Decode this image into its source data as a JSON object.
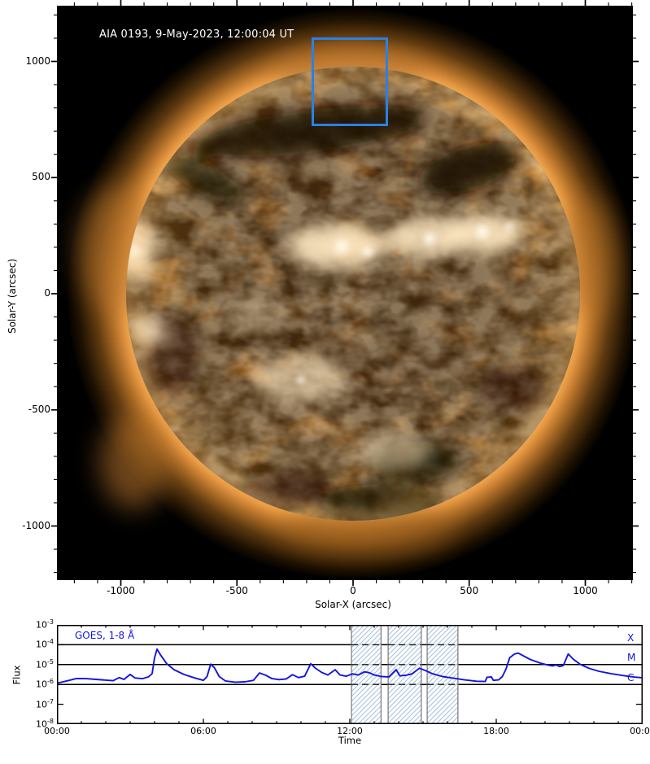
{
  "solar_plot": {
    "title": "AIA 0193, 9-May-2023, 12:00:04 UT",
    "xlabel": "Solar-X (arcsec)",
    "ylabel": "Solar-Y (arcsec)",
    "fov_box_color": "#2b80e6",
    "title_color": "#ffffff"
  },
  "goes_plot": {
    "legend": "GOES, 1-8 Å",
    "xlabel": "Time",
    "ylabel": "Flux",
    "class_labels": {
      "x": "X",
      "m": "M",
      "c": "C"
    },
    "line_color": "#1414dd",
    "hatch_color": "#a9c2de",
    "band_edge_color": "#777777"
  },
  "chart_data": [
    {
      "type": "heatmap",
      "description": "SDO/AIA 193 A full-disk EUV image of the Sun with FOV annotation box",
      "title": "AIA 0193, 9-May-2023, 12:00:04 UT",
      "xlabel": "Solar-X (arcsec)",
      "ylabel": "Solar-Y (arcsec)",
      "xlim": [
        -1240,
        1240
      ],
      "ylim": [
        -1240,
        1240
      ],
      "xticks_major": [
        -1000,
        -500,
        0,
        500,
        1000
      ],
      "yticks_major": [
        -1000,
        -500,
        0,
        500,
        1000
      ],
      "minor_tick_step": 100,
      "fov_box_arcsec": {
        "x": [
          -178,
          151
        ],
        "y": [
          721,
          1103
        ]
      }
    },
    {
      "type": "line",
      "title": "GOES, 1-8 Å",
      "xlabel": "Time",
      "ylabel": "Flux",
      "xlim_hours": [
        0,
        24
      ],
      "ylim": [
        1e-08,
        0.001
      ],
      "xticks_major_hours": [
        0,
        6,
        12,
        18,
        24
      ],
      "xtick_labels": [
        "00:00",
        "06:00",
        "12:00",
        "18:00",
        "00:00"
      ],
      "ytick_exponents": [
        -3,
        -4,
        -5,
        -6,
        -7,
        -8
      ],
      "flare_class_lines": [
        {
          "label": "X",
          "flux": 0.0001
        },
        {
          "label": "M",
          "flux": 1e-05
        },
        {
          "label": "C",
          "flux": 1e-06
        }
      ],
      "hatched_intervals_hours": [
        [
          12.07,
          13.28
        ],
        [
          13.57,
          14.93
        ],
        [
          15.17,
          16.43
        ]
      ],
      "series": [
        {
          "name": "GOES, 1-8 Å",
          "points": [
            [
              0.0,
              1.15e-06
            ],
            [
              0.4,
              1.5e-06
            ],
            [
              0.8,
              2e-06
            ],
            [
              1.2,
              1.95e-06
            ],
            [
              1.6,
              1.8e-06
            ],
            [
              2.0,
              1.65e-06
            ],
            [
              2.3,
              1.55e-06
            ],
            [
              2.55,
              2.2e-06
            ],
            [
              2.75,
              1.8e-06
            ],
            [
              3.0,
              3.2e-06
            ],
            [
              3.2,
              2.1e-06
            ],
            [
              3.5,
              1.95e-06
            ],
            [
              3.75,
              2.4e-06
            ],
            [
              3.9,
              3.5e-06
            ],
            [
              4.0,
              2.2e-05
            ],
            [
              4.1,
              6e-05
            ],
            [
              4.25,
              3e-05
            ],
            [
              4.5,
              1.1e-05
            ],
            [
              4.8,
              5.5e-06
            ],
            [
              5.2,
              3.2e-06
            ],
            [
              5.6,
              2.2e-06
            ],
            [
              6.0,
              1.6e-06
            ],
            [
              6.15,
              2.5e-06
            ],
            [
              6.3,
              1.05e-05
            ],
            [
              6.45,
              7e-06
            ],
            [
              6.65,
              2.5e-06
            ],
            [
              6.9,
              1.5e-06
            ],
            [
              7.3,
              1.3e-06
            ],
            [
              7.7,
              1.35e-06
            ],
            [
              8.05,
              1.6e-06
            ],
            [
              8.3,
              3.8e-06
            ],
            [
              8.55,
              2.9e-06
            ],
            [
              8.8,
              2e-06
            ],
            [
              9.1,
              1.75e-06
            ],
            [
              9.4,
              1.9e-06
            ],
            [
              9.65,
              3.1e-06
            ],
            [
              9.9,
              2.2e-06
            ],
            [
              10.15,
              2.6e-06
            ],
            [
              10.4,
              1.1e-05
            ],
            [
              10.6,
              6.5e-06
            ],
            [
              10.85,
              4e-06
            ],
            [
              11.1,
              3e-06
            ],
            [
              11.4,
              5.5e-06
            ],
            [
              11.6,
              3e-06
            ],
            [
              11.85,
              2.6e-06
            ],
            [
              12.1,
              3.4e-06
            ],
            [
              12.35,
              3e-06
            ],
            [
              12.6,
              4.3e-06
            ],
            [
              12.8,
              3.9e-06
            ],
            [
              13.0,
              3e-06
            ],
            [
              13.3,
              2.5e-06
            ],
            [
              13.6,
              2.4e-06
            ],
            [
              13.9,
              5.5e-06
            ],
            [
              14.05,
              2.7e-06
            ],
            [
              14.3,
              2.9e-06
            ],
            [
              14.55,
              3.4e-06
            ],
            [
              14.85,
              6.5e-06
            ],
            [
              15.1,
              5e-06
            ],
            [
              15.4,
              3.4e-06
            ],
            [
              15.8,
              2.5e-06
            ],
            [
              16.2,
              2.1e-06
            ],
            [
              16.7,
              1.7e-06
            ],
            [
              17.2,
              1.45e-06
            ],
            [
              17.55,
              1.4e-06
            ],
            [
              17.62,
              2.3e-06
            ],
            [
              17.8,
              2.4e-06
            ],
            [
              17.88,
              1.6e-06
            ],
            [
              18.1,
              1.7e-06
            ],
            [
              18.25,
              2.5e-06
            ],
            [
              18.4,
              6e-06
            ],
            [
              18.55,
              2.2e-05
            ],
            [
              18.75,
              3.4e-05
            ],
            [
              18.9,
              3.8e-05
            ],
            [
              19.1,
              2.8e-05
            ],
            [
              19.4,
              1.8e-05
            ],
            [
              19.8,
              1.2e-05
            ],
            [
              20.1,
              9.5e-06
            ],
            [
              20.3,
              8.5e-06
            ],
            [
              20.45,
              9.5e-06
            ],
            [
              20.6,
              8e-06
            ],
            [
              20.75,
              9e-06
            ],
            [
              20.95,
              3.4e-05
            ],
            [
              21.15,
              1.9e-05
            ],
            [
              21.45,
              1e-05
            ],
            [
              21.8,
              6.5e-06
            ],
            [
              22.2,
              4.6e-06
            ],
            [
              22.7,
              3.5e-06
            ],
            [
              23.2,
              2.8e-06
            ],
            [
              23.6,
              2.4e-06
            ],
            [
              24.0,
              2.15e-06
            ]
          ]
        }
      ]
    }
  ]
}
